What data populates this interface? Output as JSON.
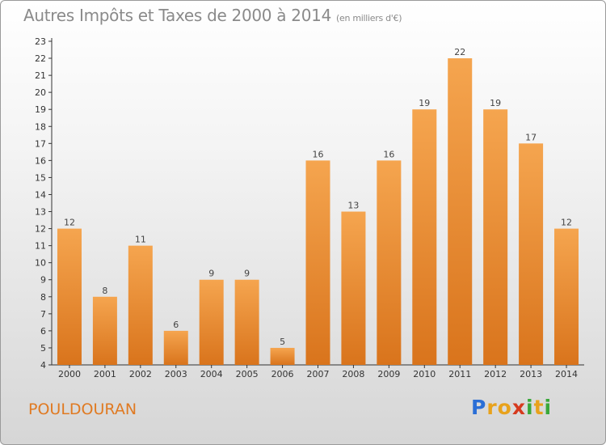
{
  "header": {
    "title": "Autres Impôts et Taxes de 2000 à 2014",
    "subtitle": "(en milliers d'€)"
  },
  "footer": {
    "commune": "POULDOURAN",
    "logo_letters": [
      "P",
      "r",
      "o",
      "x",
      "i",
      "t",
      "i"
    ],
    "logo_colors": [
      "#2b6fd6",
      "#e8a21c",
      "#e8a21c",
      "#d63a1e",
      "#3aa83a",
      "#e8a21c",
      "#3aa83a"
    ]
  },
  "colors": {
    "bar_light": "#f5a54f",
    "bar_dark": "#d9741c",
    "accent": "#e07a22"
  },
  "chart_data": {
    "type": "bar",
    "title": "Autres Impôts et Taxes de 2000 à 2014",
    "subtitle": "(en milliers d'€)",
    "xlabel": "",
    "ylabel": "",
    "categories": [
      "2000",
      "2001",
      "2002",
      "2003",
      "2004",
      "2005",
      "2006",
      "2007",
      "2008",
      "2009",
      "2010",
      "2011",
      "2012",
      "2013",
      "2014"
    ],
    "values": [
      12,
      8,
      11,
      6,
      9,
      9,
      5,
      16,
      13,
      16,
      19,
      22,
      19,
      17,
      12
    ],
    "ylim": [
      4,
      23
    ],
    "yticks": [
      4,
      5,
      6,
      7,
      8,
      9,
      10,
      11,
      12,
      13,
      14,
      15,
      16,
      17,
      18,
      19,
      20,
      21,
      22,
      23
    ],
    "grid": false,
    "legend": "none"
  }
}
